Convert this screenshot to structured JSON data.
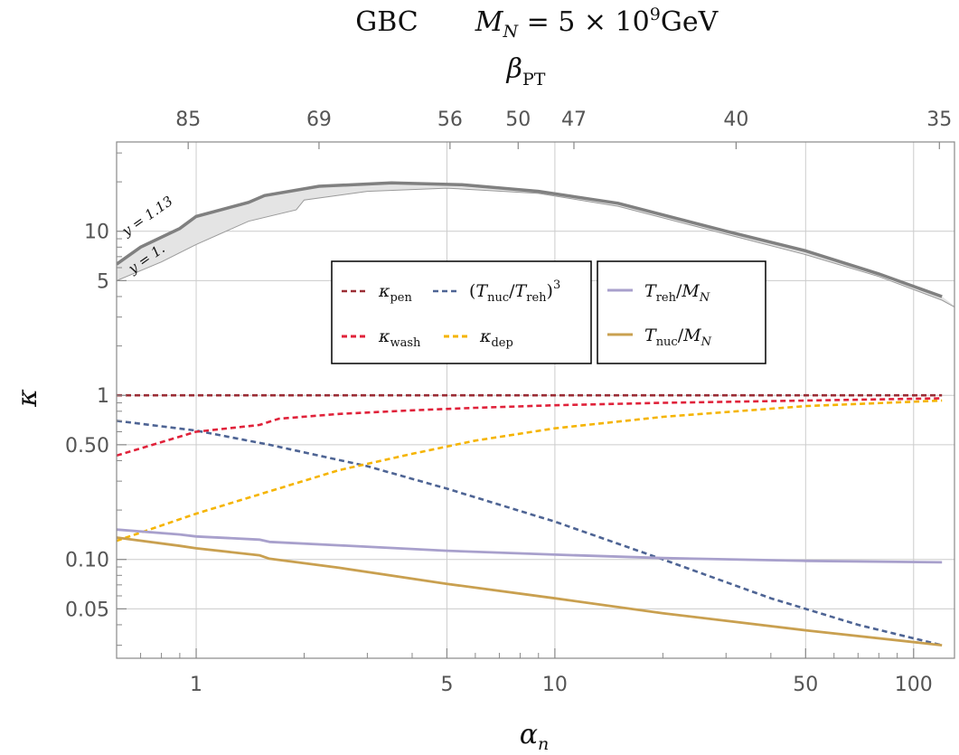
{
  "chart_data": {
    "type": "line",
    "title_left": "GBC",
    "title_right": "M_N = 5 × 10^9 GeV",
    "top_axis_label": "β_PT",
    "xlabel": "α_n",
    "ylabel": "κ",
    "xscale": "log",
    "yscale": "log",
    "xlim": [
      0.6,
      130
    ],
    "ylim": [
      0.025,
      35
    ],
    "x_ticks": [
      {
        "value": 1,
        "label": "1"
      },
      {
        "value": 5,
        "label": "5"
      },
      {
        "value": 10,
        "label": "10"
      },
      {
        "value": 50,
        "label": "50"
      },
      {
        "value": 100,
        "label": "100"
      }
    ],
    "y_ticks": [
      {
        "value": 0.05,
        "label": "0.05"
      },
      {
        "value": 0.1,
        "label": "0.10"
      },
      {
        "value": 0.5,
        "label": "0.50"
      },
      {
        "value": 1,
        "label": "1"
      },
      {
        "value": 5,
        "label": "5"
      },
      {
        "value": 10,
        "label": "10"
      }
    ],
    "top_ticks": [
      {
        "alpha": 0.95,
        "label": "85"
      },
      {
        "alpha": 2.2,
        "label": "69"
      },
      {
        "alpha": 5.1,
        "label": "56"
      },
      {
        "alpha": 7.9,
        "label": "50"
      },
      {
        "alpha": 11.3,
        "label": "47"
      },
      {
        "alpha": 32,
        "label": "40"
      },
      {
        "alpha": 118,
        "label": "35"
      }
    ],
    "band": {
      "upper_label": "y = 1.13",
      "lower_label": "y = 1.",
      "upper": [
        [
          0.6,
          6.3
        ],
        [
          0.7,
          8.0
        ],
        [
          0.9,
          10.4
        ],
        [
          1.0,
          12.3
        ],
        [
          1.4,
          15.0
        ],
        [
          1.55,
          16.5
        ],
        [
          2.2,
          18.8
        ],
        [
          3.5,
          19.7
        ],
        [
          5.5,
          19.2
        ],
        [
          9,
          17.5
        ],
        [
          15,
          14.8
        ],
        [
          30,
          10.0
        ],
        [
          50,
          7.6
        ],
        [
          80,
          5.5
        ],
        [
          120,
          4.0
        ]
      ],
      "lower": [
        [
          0.6,
          5.0
        ],
        [
          0.8,
          6.5
        ],
        [
          1.0,
          8.3
        ],
        [
          1.4,
          11.5
        ],
        [
          1.9,
          13.5
        ],
        [
          2.0,
          15.5
        ],
        [
          3.0,
          17.5
        ],
        [
          5.0,
          18.3
        ],
        [
          9,
          17.0
        ],
        [
          15,
          14.2
        ],
        [
          30,
          9.6
        ],
        [
          50,
          7.2
        ],
        [
          80,
          5.3
        ],
        [
          120,
          3.8
        ],
        [
          135,
          3.3
        ]
      ]
    },
    "series": [
      {
        "name": "κ_pen",
        "style": "dashed",
        "color": "#9b2d35",
        "x": [
          0.6,
          1,
          2,
          5,
          10,
          50,
          120
        ],
        "values": [
          1.0,
          1.0,
          1.0,
          1.0,
          1.0,
          1.0,
          1.0
        ]
      },
      {
        "name": "(T_nuc/T_reh)^3",
        "style": "dashed",
        "color": "#4e6494",
        "x": [
          0.6,
          1,
          1.6,
          3,
          5,
          10,
          20,
          40,
          70,
          120
        ],
        "values": [
          0.7,
          0.61,
          0.5,
          0.37,
          0.27,
          0.17,
          0.1,
          0.058,
          0.04,
          0.03
        ]
      },
      {
        "name": "κ_wash",
        "style": "dashed",
        "color": "#e0223a",
        "x": [
          0.6,
          1,
          1.5,
          1.7,
          2.5,
          4,
          6,
          10,
          20,
          50,
          120
        ],
        "values": [
          0.43,
          0.6,
          0.66,
          0.72,
          0.77,
          0.81,
          0.84,
          0.87,
          0.9,
          0.93,
          0.96
        ]
      },
      {
        "name": "κ_dep",
        "style": "dashed",
        "color": "#f5b400",
        "x": [
          0.6,
          1,
          1.6,
          2.5,
          4,
          6,
          10,
          20,
          50,
          120
        ],
        "values": [
          0.13,
          0.19,
          0.26,
          0.35,
          0.44,
          0.53,
          0.63,
          0.74,
          0.86,
          0.93
        ]
      },
      {
        "name": "T_reh/M_N",
        "style": "solid",
        "color": "#a8a0cc",
        "x": [
          0.6,
          0.9,
          1,
          1.5,
          1.6,
          2.5,
          5,
          10,
          20,
          50,
          120
        ],
        "values": [
          0.152,
          0.142,
          0.138,
          0.132,
          0.128,
          0.122,
          0.113,
          0.107,
          0.102,
          0.098,
          0.096
        ]
      },
      {
        "name": "T_nuc/M_N",
        "style": "solid",
        "color": "#c9a050",
        "x": [
          0.6,
          0.9,
          1,
          1.5,
          1.6,
          2.5,
          5,
          10,
          20,
          50,
          120
        ],
        "values": [
          0.136,
          0.121,
          0.117,
          0.106,
          0.101,
          0.089,
          0.071,
          0.058,
          0.047,
          0.037,
          0.03
        ]
      }
    ],
    "legend_boxes": [
      {
        "position": "center-left",
        "entries": [
          "κ_pen",
          "(T_nuc/T_reh)^3",
          "κ_wash",
          "κ_dep"
        ]
      },
      {
        "position": "center-right",
        "entries": [
          "T_reh/M_N",
          "T_nuc/M_N"
        ]
      }
    ],
    "grid": true
  }
}
